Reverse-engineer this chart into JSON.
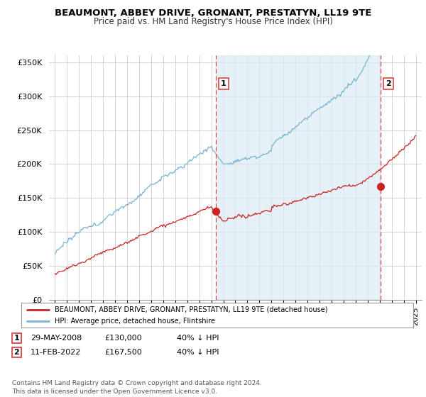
{
  "title": "BEAUMONT, ABBEY DRIVE, GRONANT, PRESTATYN, LL19 9TE",
  "subtitle": "Price paid vs. HM Land Registry's House Price Index (HPI)",
  "yticks": [
    0,
    50000,
    100000,
    150000,
    200000,
    250000,
    300000,
    350000
  ],
  "ytick_labels": [
    "£0",
    "£50K",
    "£100K",
    "£150K",
    "£200K",
    "£250K",
    "£300K",
    "£350K"
  ],
  "ylim": [
    0,
    360000
  ],
  "xlim_start": 1994.5,
  "xlim_end": 2025.5,
  "hpi_color": "#7ab3d4",
  "hpi_fill_color": "#daeaf5",
  "price_color": "#cc2222",
  "vline_color": "#dd4444",
  "sale1_x": 2008.4,
  "sale1_y": 130000,
  "sale2_x": 2022.1,
  "sale2_y": 167500,
  "legend_line1": "BEAUMONT, ABBEY DRIVE, GRONANT, PRESTATYN, LL19 9TE (detached house)",
  "legend_line2": "HPI: Average price, detached house, Flintshire",
  "table_row1": [
    "1",
    "29-MAY-2008",
    "£130,000",
    "40% ↓ HPI"
  ],
  "table_row2": [
    "2",
    "11-FEB-2022",
    "£167,500",
    "40% ↓ HPI"
  ],
  "footer": "Contains HM Land Registry data © Crown copyright and database right 2024.\nThis data is licensed under the Open Government Licence v3.0.",
  "background_color": "#ffffff",
  "grid_color": "#cccccc"
}
